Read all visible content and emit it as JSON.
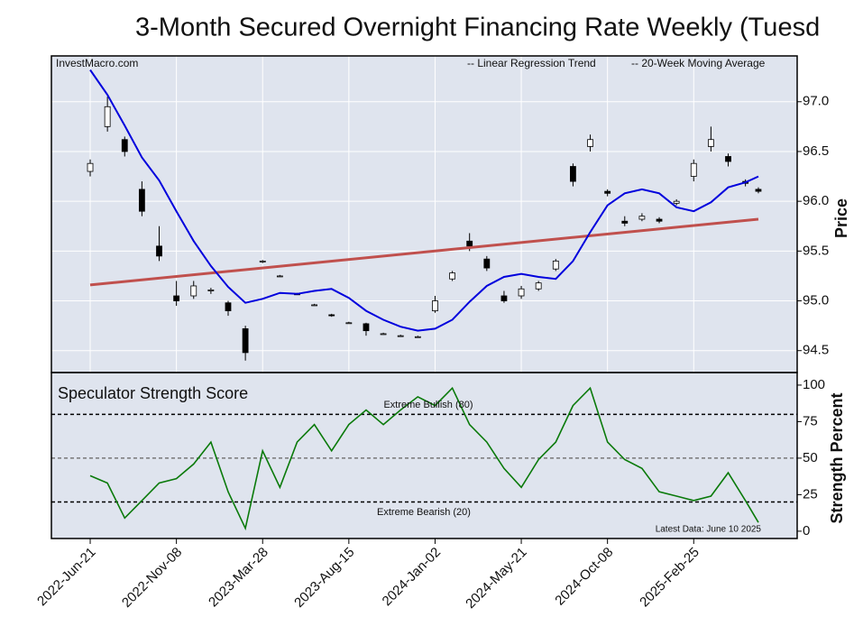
{
  "chart_data": [
    {
      "type": "candlestick",
      "title": "3-Month Secured Overnight Financing Rate Weekly (Tuesd",
      "source": "InvestMacro.com",
      "y_label": "Price",
      "x": [
        "2022-06-21",
        "2022-07-19",
        "2022-08-16",
        "2022-09-13",
        "2022-10-11",
        "2022-11-08",
        "2022-12-06",
        "2023-01-03",
        "2023-01-31",
        "2023-02-28",
        "2023-03-28",
        "2023-04-25",
        "2023-05-23",
        "2023-06-20",
        "2023-07-18",
        "2023-08-15",
        "2023-09-12",
        "2023-10-10",
        "2023-11-07",
        "2023-12-05",
        "2024-01-02",
        "2024-01-30",
        "2024-02-27",
        "2024-03-26",
        "2024-04-23",
        "2024-05-21",
        "2024-06-18",
        "2024-07-16",
        "2024-08-13",
        "2024-09-10",
        "2024-10-08",
        "2024-11-05",
        "2024-12-03",
        "2024-12-31",
        "2025-01-28",
        "2025-02-25",
        "2025-03-25",
        "2025-04-22",
        "2025-05-20",
        "2025-06-10"
      ],
      "open": [
        96.3,
        96.75,
        96.62,
        96.12,
        95.55,
        95.05,
        95.05,
        95.1,
        94.98,
        94.72,
        95.39,
        95.25,
        95.07,
        94.96,
        94.86,
        94.78,
        94.77,
        94.67,
        94.65,
        94.64,
        94.9,
        95.22,
        95.6,
        95.42,
        95.05,
        95.05,
        95.12,
        95.32,
        96.35,
        96.55,
        96.1,
        95.8,
        95.82,
        95.82,
        95.98,
        96.25,
        96.55,
        96.45,
        96.2,
        96.12
      ],
      "high": [
        96.42,
        97.05,
        96.65,
        96.2,
        95.75,
        95.2,
        95.2,
        95.13,
        95.0,
        94.75,
        95.41,
        95.26,
        95.08,
        94.97,
        94.87,
        94.79,
        94.78,
        94.68,
        94.66,
        94.65,
        95.05,
        95.3,
        95.68,
        95.45,
        95.1,
        95.15,
        95.2,
        95.42,
        96.38,
        96.67,
        96.12,
        95.85,
        95.88,
        95.84,
        96.02,
        96.42,
        96.75,
        96.48,
        96.22,
        96.14
      ],
      "low": [
        96.25,
        96.7,
        96.45,
        95.85,
        95.4,
        94.95,
        95.02,
        95.07,
        94.85,
        94.4,
        95.38,
        95.24,
        95.06,
        94.95,
        94.84,
        94.77,
        94.65,
        94.66,
        94.64,
        94.63,
        94.88,
        95.2,
        95.5,
        95.3,
        94.98,
        95.02,
        95.1,
        95.3,
        96.15,
        96.5,
        96.05,
        95.75,
        95.8,
        95.78,
        95.96,
        96.2,
        96.5,
        96.35,
        96.15,
        96.08
      ],
      "close": [
        96.38,
        96.95,
        96.5,
        95.9,
        95.45,
        95.0,
        95.15,
        95.11,
        94.9,
        94.48,
        95.4,
        95.25,
        95.07,
        94.96,
        94.85,
        94.78,
        94.7,
        94.67,
        94.65,
        94.64,
        95.0,
        95.28,
        95.55,
        95.33,
        95.0,
        95.12,
        95.18,
        95.4,
        96.2,
        96.62,
        96.08,
        95.78,
        95.85,
        95.8,
        96.0,
        96.38,
        96.62,
        96.4,
        96.18,
        96.1
      ],
      "series": [
        {
          "name": "-- Linear Regression Trend",
          "color": "#c0504d",
          "x": [
            "2022-06-21",
            "2025-06-10"
          ],
          "values": [
            95.16,
            95.82
          ]
        },
        {
          "name": "-- 20-Week Moving Average",
          "color": "#0000dd",
          "values": [
            97.32,
            97.07,
            96.76,
            96.44,
            96.21,
            95.9,
            95.6,
            95.35,
            95.14,
            94.98,
            95.02,
            95.08,
            95.07,
            95.1,
            95.12,
            95.03,
            94.9,
            94.81,
            94.74,
            94.7,
            94.72,
            94.81,
            94.99,
            95.15,
            95.24,
            95.27,
            95.24,
            95.22,
            95.4,
            95.69,
            95.96,
            96.08,
            96.12,
            96.08,
            95.94,
            95.9,
            95.99,
            96.14,
            96.19,
            96.25
          ]
        }
      ],
      "xlim": [
        "2022-04-19",
        "2025-08-12"
      ],
      "xticks": [
        {
          "value": "2022-06-21",
          "label": "2022-Jun-21"
        },
        {
          "value": "2022-11-08",
          "label": "2022-Nov-08"
        },
        {
          "value": "2023-03-28",
          "label": "2023-Mar-28"
        },
        {
          "value": "2023-08-15",
          "label": "2023-Aug-15"
        },
        {
          "value": "2024-01-02",
          "label": "2024-Jan-02"
        },
        {
          "value": "2024-05-21",
          "label": "2024-May-21"
        },
        {
          "value": "2024-10-08",
          "label": "2024-Oct-08"
        },
        {
          "value": "2025-02-25",
          "label": "2025-Feb-25"
        }
      ],
      "ylim": [
        94.28,
        97.46
      ],
      "yticks": [
        94.5,
        {
          "value": 95,
          "label": "95.0"
        },
        95.5,
        {
          "value": 96,
          "label": "96.0"
        },
        96.5,
        {
          "value": 97,
          "label": "97.0"
        }
      ],
      "grid": true
    },
    {
      "type": "line",
      "title": "Speculator Strength Score",
      "y_label": "Strength Percent",
      "annotations": [
        "Extreme Bullish (80)",
        "Extreme Bearish (20)",
        "Latest Data: June 10 2025"
      ],
      "reference_lines": [
        {
          "value": 80,
          "color": "#000"
        },
        {
          "value": 50,
          "color": "#777"
        },
        {
          "value": 20,
          "color": "#000"
        }
      ],
      "series": [
        {
          "name": "Speculator Strength Score",
          "color": "#0a7a0a",
          "values": [
            38,
            33,
            9,
            21,
            33,
            36,
            46,
            61,
            27,
            2,
            55,
            30,
            61,
            73,
            55,
            73,
            83,
            73,
            83,
            92,
            86,
            98,
            73,
            61,
            43,
            30,
            49,
            61,
            86,
            98,
            61,
            49,
            43,
            27,
            24,
            21,
            24,
            40,
            21,
            6
          ]
        }
      ],
      "ylim": [
        -5,
        108.6
      ],
      "yticks": [
        0,
        25,
        50,
        75,
        100
      ]
    }
  ]
}
